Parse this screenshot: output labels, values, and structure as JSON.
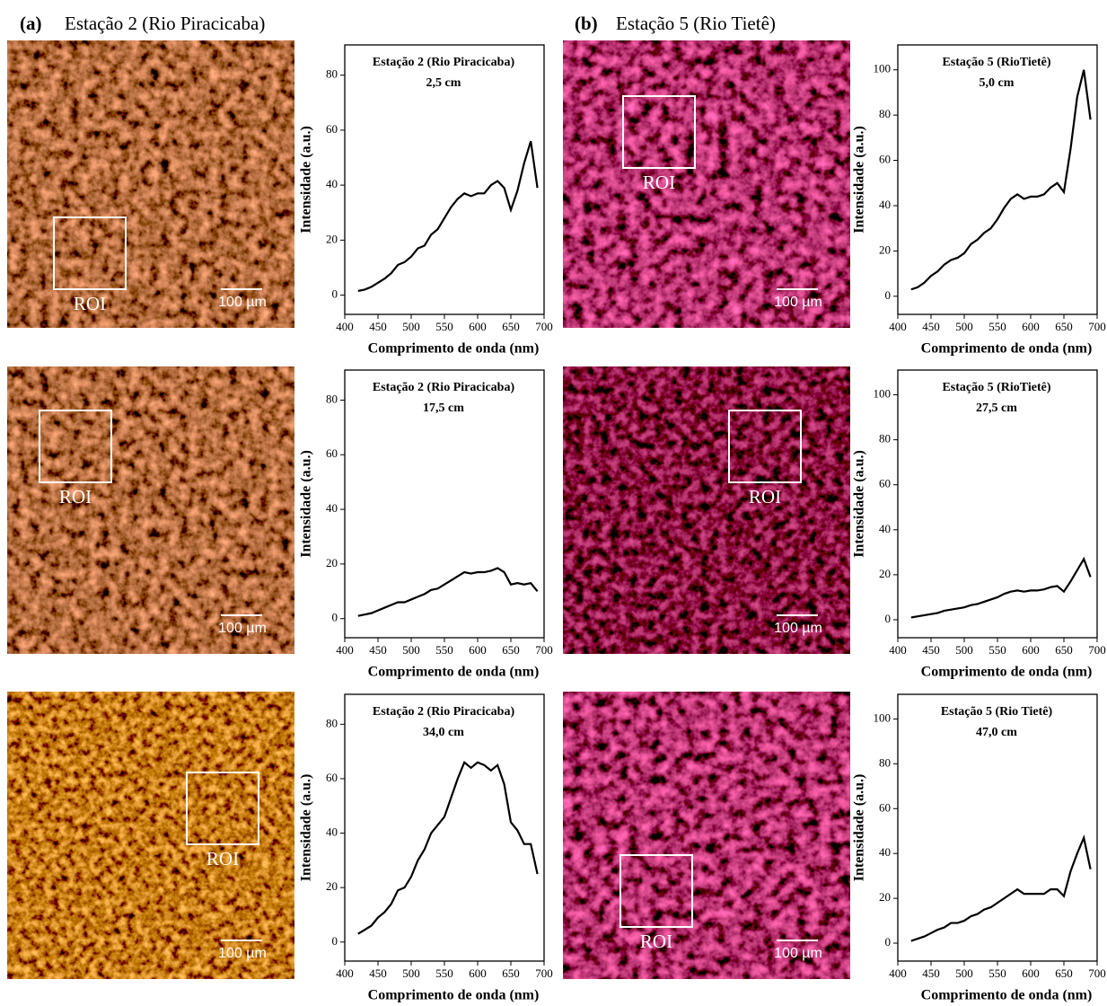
{
  "headers": [
    {
      "letter": "(a)",
      "title": "Estação 2 (Rio Piracicaba)"
    },
    {
      "letter": "(b)",
      "title": "Estação 5 (Rio Tietê)"
    }
  ],
  "images": [
    {
      "roi": "ROI",
      "scale": "100 µm"
    },
    {
      "roi": "ROI",
      "scale": "100 µm"
    },
    {
      "roi": "ROI",
      "scale": "100 µm"
    },
    {
      "roi": "ROI",
      "scale": "100 µm"
    },
    {
      "roi": "ROI",
      "scale": "100 µm"
    },
    {
      "roi": "ROI",
      "scale": "100 µm"
    }
  ],
  "chart_data": [
    {
      "type": "line",
      "title": "Estação 2 (Rio Piracicaba)",
      "subtitle": "2,5 cm",
      "xlabel": "Comprimento de onda (nm)",
      "ylabel": "Intensidade (a.u.)",
      "x": [
        420,
        430,
        440,
        450,
        460,
        470,
        480,
        490,
        500,
        510,
        520,
        530,
        540,
        550,
        560,
        570,
        580,
        590,
        600,
        610,
        620,
        630,
        640,
        650,
        660,
        670,
        680,
        690
      ],
      "series": [
        {
          "color": "#000000",
          "values": [
            1.5,
            2,
            3,
            4.5,
            6,
            8,
            11,
            12,
            14,
            17,
            18,
            22,
            24,
            28,
            32,
            35,
            37,
            36,
            37,
            37,
            40,
            41.5,
            39,
            31,
            38,
            48,
            56,
            39
          ]
        }
      ],
      "xlim": [
        400,
        700
      ],
      "ylim": [
        -7,
        91
      ],
      "xticks": [
        400,
        450,
        500,
        550,
        600,
        650,
        700
      ],
      "yticks": [
        0,
        20,
        40,
        60,
        80
      ]
    },
    {
      "type": "line",
      "title": "Estação 2 (Rio Piracicaba)",
      "subtitle": "17,5 cm",
      "xlabel": "Comprimento de onda (nm)",
      "ylabel": "Intensidade (a.u.)",
      "x": [
        420,
        430,
        440,
        450,
        460,
        470,
        480,
        490,
        500,
        510,
        520,
        530,
        540,
        550,
        560,
        570,
        580,
        590,
        600,
        610,
        620,
        630,
        640,
        650,
        660,
        670,
        680,
        690
      ],
      "series": [
        {
          "color": "#000000",
          "values": [
            1,
            1.5,
            2,
            3,
            4,
            5,
            6,
            6,
            7,
            8,
            9,
            10.5,
            11,
            12.5,
            14,
            15.5,
            17,
            16.5,
            17,
            17,
            17.5,
            18.5,
            17,
            12.5,
            13,
            12.5,
            13,
            10
          ]
        }
      ],
      "xlim": [
        400,
        700
      ],
      "ylim": [
        -7,
        91
      ],
      "xticks": [
        400,
        450,
        500,
        550,
        600,
        650,
        700
      ],
      "yticks": [
        0,
        20,
        40,
        60,
        80
      ]
    },
    {
      "type": "line",
      "title": "Estação 2 (Rio Piracicaba)",
      "subtitle": "34,0 cm",
      "xlabel": "Comprimento de onda (nm)",
      "ylabel": "Intensidade (a.u.)",
      "x": [
        420,
        430,
        440,
        450,
        460,
        470,
        480,
        490,
        500,
        510,
        520,
        530,
        540,
        550,
        560,
        570,
        580,
        590,
        600,
        610,
        620,
        630,
        640,
        650,
        660,
        670,
        680,
        690
      ],
      "series": [
        {
          "color": "#000000",
          "values": [
            3,
            4.5,
            6,
            9,
            11,
            14,
            19,
            20,
            24,
            30,
            34,
            40,
            43,
            46,
            53,
            60,
            66,
            64,
            66,
            65,
            63,
            65,
            58,
            44,
            41,
            36,
            36,
            25
          ]
        }
      ],
      "xlim": [
        400,
        700
      ],
      "ylim": [
        -7,
        91
      ],
      "xticks": [
        400,
        450,
        500,
        550,
        600,
        650,
        700
      ],
      "yticks": [
        0,
        20,
        40,
        60,
        80
      ]
    },
    {
      "type": "line",
      "title": "Estação 5 (RioTietê)",
      "subtitle": "5,0 cm",
      "xlabel": "Comprimento de onda (nm)",
      "ylabel": "Intensidade (a.u.)",
      "x": [
        420,
        430,
        440,
        450,
        460,
        470,
        480,
        490,
        500,
        510,
        520,
        530,
        540,
        550,
        560,
        570,
        580,
        590,
        600,
        610,
        620,
        630,
        640,
        650,
        660,
        670,
        680,
        690
      ],
      "series": [
        {
          "color": "#000000",
          "values": [
            3,
            4,
            6,
            9,
            11,
            14,
            16,
            17,
            19,
            23,
            25,
            28,
            30,
            34,
            39,
            43,
            45,
            43,
            44,
            44,
            45,
            48,
            50,
            46,
            65,
            88,
            100,
            78
          ]
        }
      ],
      "xlim": [
        400,
        700
      ],
      "ylim": [
        -8,
        111
      ],
      "xticks": [
        400,
        450,
        500,
        550,
        600,
        650,
        700
      ],
      "yticks": [
        0,
        20,
        40,
        60,
        80,
        100
      ]
    },
    {
      "type": "line",
      "title": "Estação 5 (RioTietê)",
      "subtitle": "27,5 cm",
      "xlabel": "Comprimento de onda (nm)",
      "ylabel": "Intensidade (a.u.)",
      "x": [
        420,
        430,
        440,
        450,
        460,
        470,
        480,
        490,
        500,
        510,
        520,
        530,
        540,
        550,
        560,
        570,
        580,
        590,
        600,
        610,
        620,
        630,
        640,
        650,
        660,
        670,
        680,
        690
      ],
      "series": [
        {
          "color": "#000000",
          "values": [
            1,
            1.5,
            2,
            2.5,
            3,
            4,
            4.5,
            5,
            5.5,
            6.5,
            7,
            8,
            9,
            10,
            11.5,
            12.5,
            13,
            12.5,
            13,
            13,
            13.5,
            14.5,
            15,
            12.5,
            17,
            22,
            27,
            19
          ]
        }
      ],
      "xlim": [
        400,
        700
      ],
      "ylim": [
        -8,
        111
      ],
      "xticks": [
        400,
        450,
        500,
        550,
        600,
        650,
        700
      ],
      "yticks": [
        0,
        20,
        40,
        60,
        80,
        100
      ]
    },
    {
      "type": "line",
      "title": "Estação 5 (Rio Tietê)",
      "subtitle": "47,0 cm",
      "xlabel": "Comprimento de onda (nm)",
      "ylabel": "Intensidade (a.u.)",
      "x": [
        420,
        430,
        440,
        450,
        460,
        470,
        480,
        490,
        500,
        510,
        520,
        530,
        540,
        550,
        560,
        570,
        580,
        590,
        600,
        610,
        620,
        630,
        640,
        650,
        660,
        670,
        680,
        690
      ],
      "series": [
        {
          "color": "#000000",
          "values": [
            1,
            2,
            3,
            4.5,
            6,
            7,
            9,
            9,
            10,
            12,
            13,
            15,
            16,
            18,
            20,
            22,
            24,
            22,
            22,
            22,
            22,
            24,
            24,
            21,
            32,
            40,
            47,
            33
          ]
        }
      ],
      "xlim": [
        400,
        700
      ],
      "ylim": [
        -8,
        111
      ],
      "xticks": [
        400,
        450,
        500,
        550,
        600,
        650,
        700
      ],
      "yticks": [
        0,
        20,
        40,
        60,
        80,
        100
      ]
    }
  ]
}
